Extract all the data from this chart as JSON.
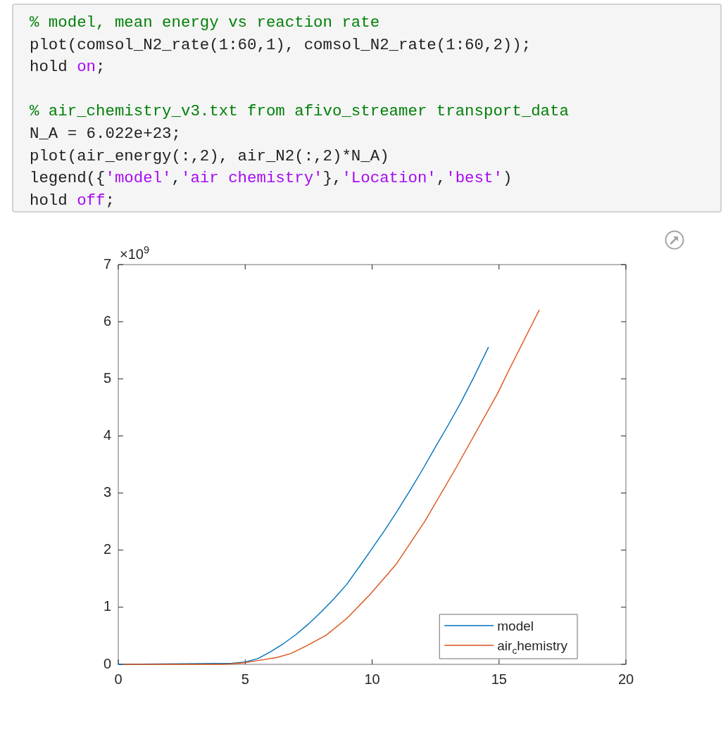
{
  "chart_data": [
    {
      "type": "other",
      "annotations": [
        "% model, mean energy vs reaction rate",
        "plot(comsol_N2_rate(1:60,1), comsol_N2_rate(1:60,2));",
        "hold on;",
        "% air_chemistry_v3.txt from afivo_streamer transport_data",
        "N_A = 6.022e+23;",
        "plot(air_energy(:,2), air_N2(:,2)*N_A)",
        "legend({'model','air chemistry'},'Location','best')",
        "hold off;"
      ]
    },
    {
      "type": "line",
      "series": [
        {
          "name": "model",
          "color": "#0072bd",
          "x": [
            0,
            4.5,
            5,
            5.5,
            6,
            6.5,
            7,
            7.5,
            8,
            8.5,
            9,
            9.5,
            10,
            10.5,
            11,
            11.5,
            12,
            12.5,
            13,
            13.5,
            14,
            14.58
          ],
          "values": [
            0,
            0.02,
            0.04,
            0.1,
            0.22,
            0.36,
            0.52,
            0.71,
            0.92,
            1.15,
            1.4,
            1.71,
            2.03,
            2.35,
            2.69,
            3.05,
            3.42,
            3.81,
            4.19,
            4.59,
            5.02,
            5.55
          ]
        },
        {
          "name": "air$_{c}$hemistry",
          "color": "#d95319",
          "x": [
            0.2,
            1,
            2,
            3,
            4,
            4.5,
            5,
            5.55,
            6.25,
            6.8,
            7.45,
            8.19,
            9.02,
            9.93,
            10.96,
            12.07,
            13.28,
            14.94,
            15.4,
            16.58
          ],
          "values": [
            0,
            0,
            0,
            0,
            0,
            0.01,
            0.03,
            0.07,
            0.12,
            0.19,
            0.33,
            0.51,
            0.81,
            1.23,
            1.76,
            2.5,
            3.42,
            4.74,
            5.16,
            6.2
          ]
        }
      ],
      "xlim": [
        0,
        20
      ],
      "xticks": [
        0,
        5,
        10,
        15,
        20
      ],
      "ylim": [
        0,
        7
      ],
      "yticks": [
        0,
        1,
        2,
        3,
        4,
        5,
        6,
        7
      ],
      "grid": false,
      "legend": "bottom right",
      "marker": "none",
      "line_style": "solid",
      "annotations": [
        "×10$^{9}$"
      ]
    }
  ]
}
